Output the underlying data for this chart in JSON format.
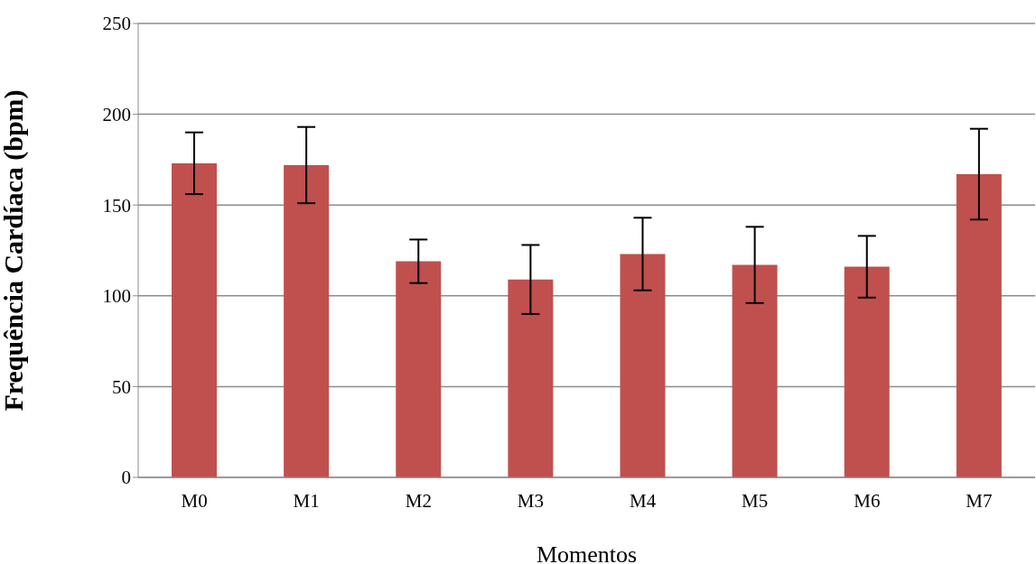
{
  "chart_data": {
    "type": "bar",
    "xlabel": "Momentos",
    "ylabel": "Frequência Cardíaca (bpm)",
    "categories": [
      "M0",
      "M1",
      "M2",
      "M3",
      "M4",
      "M5",
      "M6",
      "M7"
    ],
    "values": [
      173,
      172,
      119,
      109,
      123,
      117,
      116,
      167
    ],
    "errors": [
      17,
      21,
      12,
      19,
      20,
      21,
      17,
      25
    ],
    "color": "#c0504d",
    "ylim": [
      0,
      250
    ],
    "yticks": [
      0,
      50,
      100,
      150,
      200,
      250
    ],
    "grid": "y",
    "legend": false
  }
}
